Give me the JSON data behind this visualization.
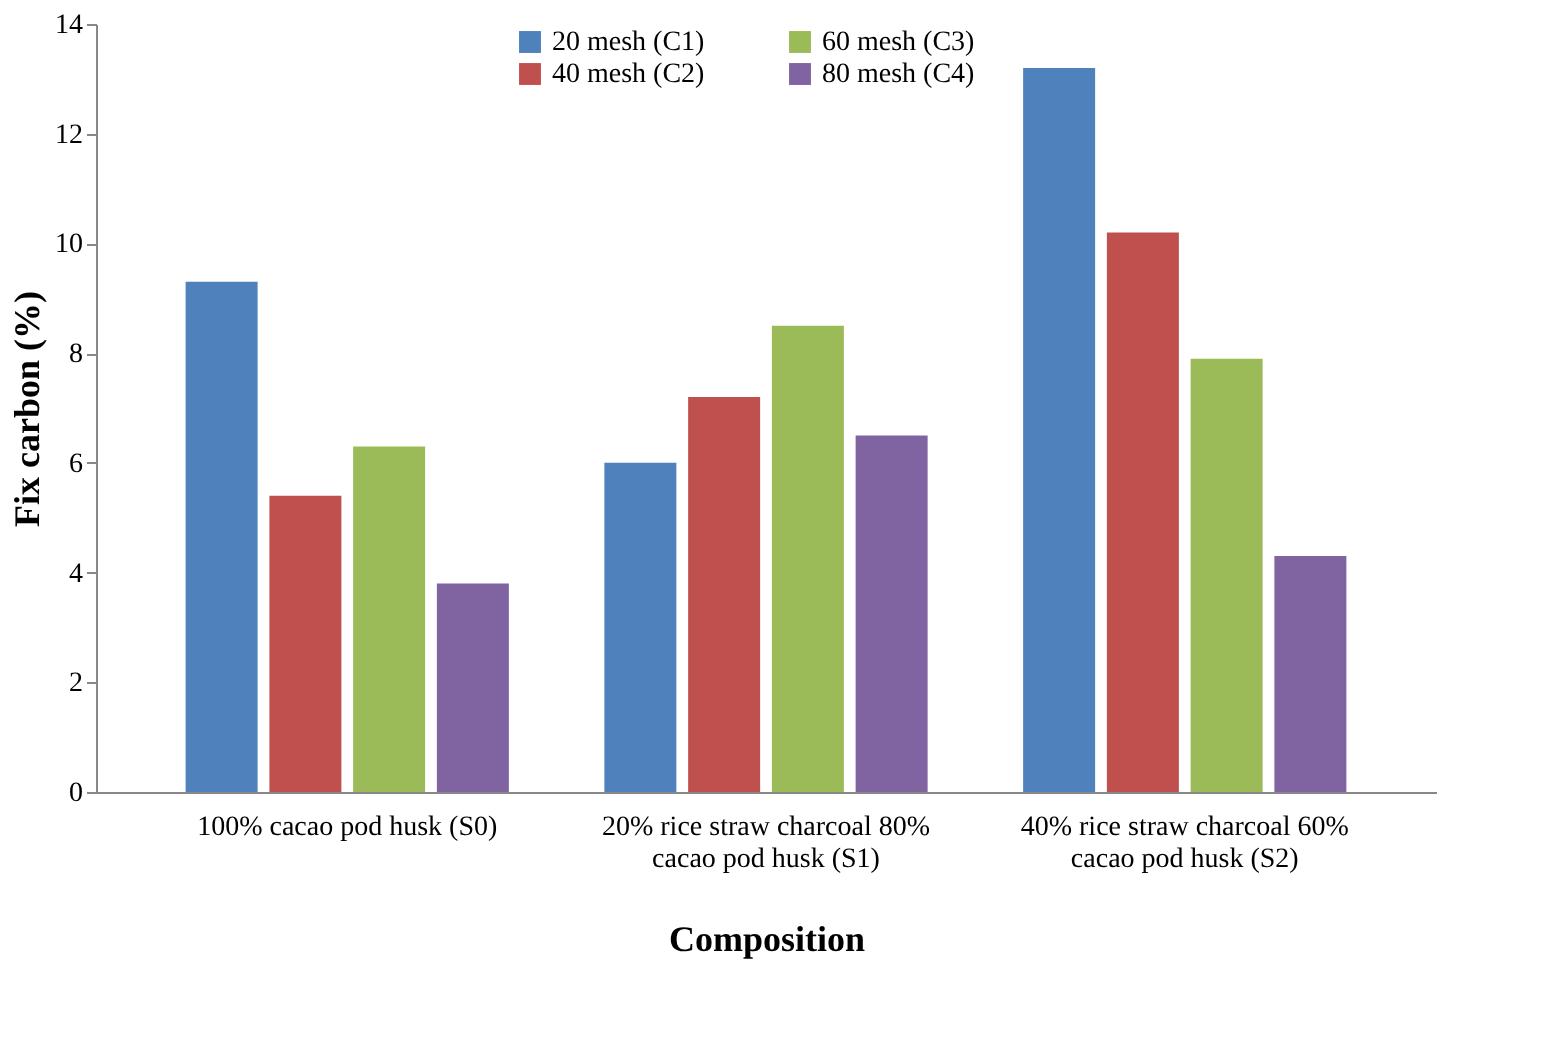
{
  "chart_data": {
    "type": "bar",
    "xlabel": "Composition",
    "ylabel": "Fix carbon (%)",
    "categories": [
      "100% cacao pod husk (S0)",
      "20% rice straw charcoal 80% cacao pod husk (S1)",
      "40% rice straw charcoal 60% cacao pod husk (S2)"
    ],
    "series": [
      {
        "name": "20 mesh (C1)",
        "color": "#4f81bd",
        "values": [
          9.3,
          6.0,
          13.2
        ]
      },
      {
        "name": "40 mesh (C2)",
        "color": "#c0504d",
        "values": [
          5.4,
          7.2,
          10.2
        ]
      },
      {
        "name": "60 mesh (C3)",
        "color": "#9bbb59",
        "values": [
          6.3,
          8.5,
          7.9
        ]
      },
      {
        "name": "80 mesh (C4)",
        "color": "#8064a2",
        "values": [
          3.8,
          6.5,
          4.3
        ]
      }
    ],
    "ylim": [
      0,
      14
    ],
    "yticks": [
      0,
      2,
      4,
      6,
      8,
      10,
      12,
      14
    ],
    "grid": false,
    "legend": "top"
  }
}
